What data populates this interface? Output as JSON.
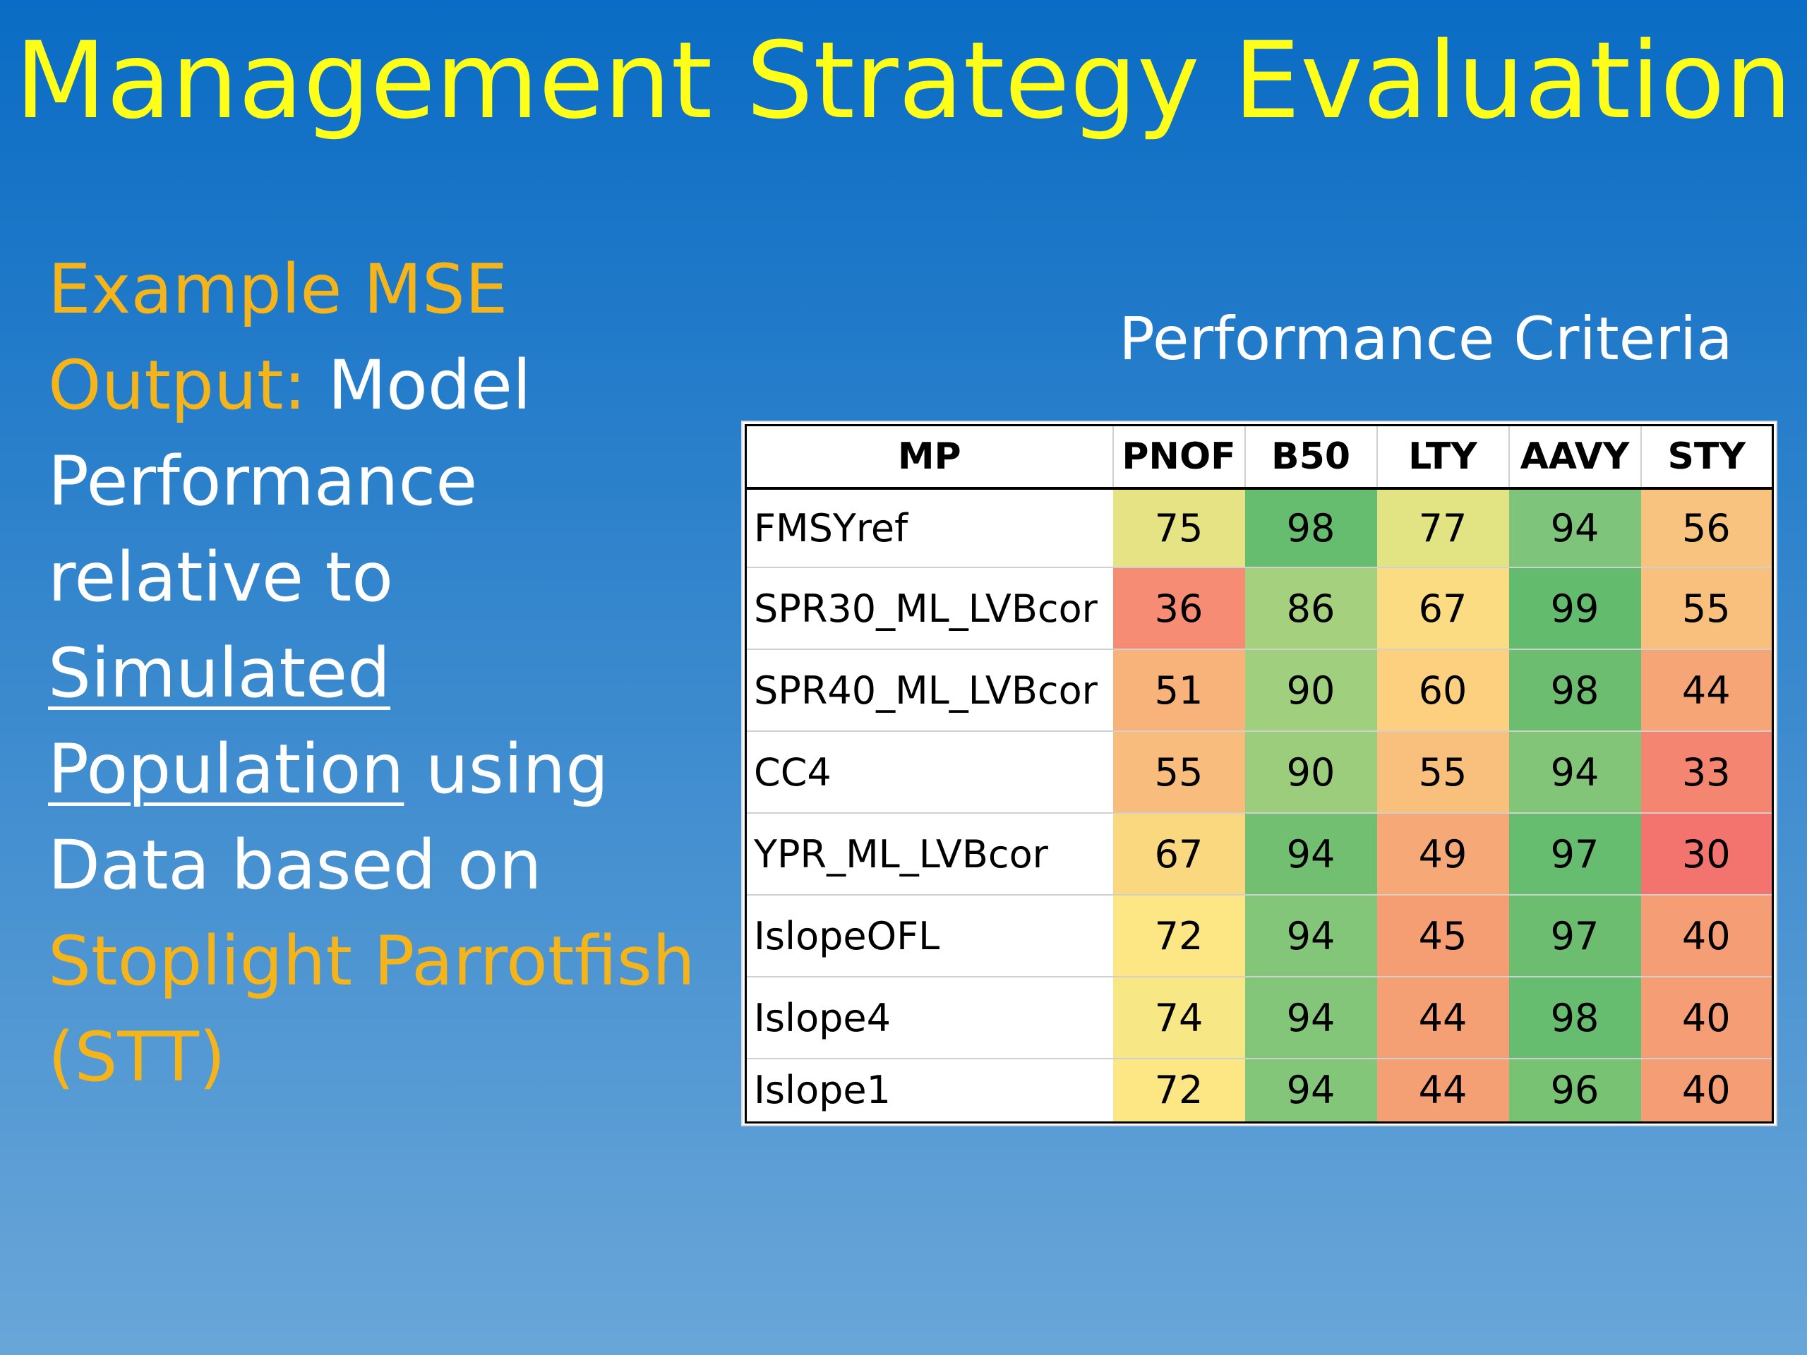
{
  "slide": {
    "title": "Management Strategy Evaluation",
    "description": {
      "part1": "Example MSE",
      "part2": "Output:",
      "part3": " Model",
      "part4": "Performance",
      "part5": "relative to",
      "part6": "Simulated",
      "part7": "Population",
      "part8": " using",
      "part9": "Data based on",
      "part10": "Stoplight Parrotfish",
      "part11": "(STT)"
    },
    "criteria_title": "Performance Criteria",
    "colors": {
      "title": "#ffff1a",
      "accent_orange": "#f6b41b",
      "background_top": "#0a6cc4",
      "background_bottom": "#69a6d8"
    }
  },
  "table": {
    "headers": [
      "MP",
      "PNOF",
      "B50",
      "LTY",
      "AAVY",
      "STY"
    ],
    "rows": [
      {
        "mp": "FMSYref",
        "values": [
          "75",
          "98",
          "77",
          "94",
          "56"
        ],
        "colors": [
          "#e5e384",
          "#66bc6f",
          "#e2e483",
          "#7ec47a",
          "#f8c37e"
        ]
      },
      {
        "mp": "SPR30_ML_LVBcor",
        "values": [
          "36",
          "86",
          "67",
          "99",
          "55"
        ],
        "colors": [
          "#f58c73",
          "#a5d17f",
          "#fbdc82",
          "#63bb6e",
          "#f8bf7d"
        ]
      },
      {
        "mp": "SPR40_ML_LVBcor",
        "values": [
          "51",
          "90",
          "60",
          "98",
          "44"
        ],
        "colors": [
          "#f8b37b",
          "#a0cf7e",
          "#fcd07f",
          "#6cbd70",
          "#f6a577"
        ]
      },
      {
        "mp": "CC4",
        "values": [
          "55",
          "90",
          "55",
          "94",
          "33"
        ],
        "colors": [
          "#f8bd7d",
          "#9bcd7c",
          "#f9c07d",
          "#82c579",
          "#f48671"
        ]
      },
      {
        "mp": "YPR_ML_LVBcor",
        "values": [
          "67",
          "94",
          "49",
          "97",
          "30"
        ],
        "colors": [
          "#fad880",
          "#72bf72",
          "#f7a877",
          "#66bc6f",
          "#f3746e"
        ]
      },
      {
        "mp": "IslopeOFL",
        "values": [
          "72",
          "94",
          "45",
          "97",
          "40"
        ],
        "colors": [
          "#fde684",
          "#84c679",
          "#f59e74",
          "#6dbd70",
          "#f59d75"
        ]
      },
      {
        "mp": "Islope4",
        "values": [
          "74",
          "94",
          "44",
          "98",
          "40"
        ],
        "colors": [
          "#f8e785",
          "#84c679",
          "#f59f74",
          "#66bc6f",
          "#f59d75"
        ]
      },
      {
        "mp": "Islope1",
        "values": [
          "72",
          "94",
          "44",
          "96",
          "40"
        ],
        "colors": [
          "#fde684",
          "#84c679",
          "#f59f74",
          "#78c273",
          "#f59d75"
        ]
      }
    ]
  }
}
